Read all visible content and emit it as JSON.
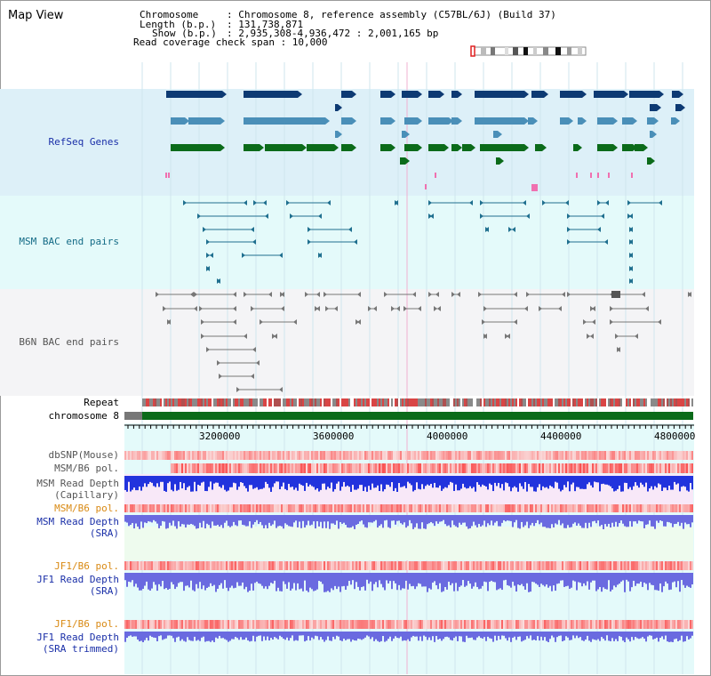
{
  "app": {
    "title": "Map View"
  },
  "info": {
    "chromosome_key": "Chromosome",
    "chromosome_val": ": Chromosome 8, reference assembly (C57BL/6J) (Build 37)",
    "length_key": "Length (b.p.)",
    "length_val": ": 131,738,871",
    "show_key": "Show (b.p.)",
    "show_val": ": 2,935,308-4,936,472 : 2,001,165 bp",
    "coverage": "Read coverage check span : 10,000"
  },
  "tracks": {
    "refseq": "RefSeq Genes",
    "msm_bac": "MSM BAC end pairs",
    "b6n_bac": "B6N BAC end pairs",
    "repeat": "Repeat",
    "chromosome": "chromosome 8",
    "dbsnp": "dbSNP(Mouse)",
    "msm_b6_pol": "MSM/B6 pol.",
    "msm_depth_cap_1": "MSM Read Depth",
    "msm_depth_cap_2": "(Capillary)",
    "msm_b6_pol_2": "MSM/B6 pol.",
    "msm_depth_sra_1": "MSM Read Depth",
    "msm_depth_sra_2": "(SRA)",
    "jf1_pol_1": "JF1/B6 pol.",
    "jf1_depth_sra_1": "JF1 Read Depth",
    "jf1_depth_sra_2": "(SRA)",
    "jf1_pol_2": "JF1/B6 pol.",
    "jf1_depth_trim_1": "JF1 Read Depth",
    "jf1_depth_trim_2": "(SRA trimmed)"
  },
  "axis": {
    "ticks": [
      "3200000",
      "3600000",
      "4000000",
      "4400000",
      "4800000"
    ]
  },
  "colors": {
    "refseq_bg": "#ddf0f8",
    "bac_bg": "#e4fafa",
    "b6n_bg": "#f4f4f6",
    "gene_dark": "#0d3a73",
    "gene_mid": "#4a8fb8",
    "gene_green": "#0b6b1a",
    "msm_pair": "#1f6f8f",
    "b6n_pair": "#777777",
    "chromosome": "#0b6b1a",
    "depth_cap": "#2233dd",
    "depth_sra": "#6a6ae0",
    "pol_red": "#e84040",
    "label_blue": "#1a2fa8",
    "label_teal": "#146b86",
    "label_orange": "#d98a14"
  }
}
